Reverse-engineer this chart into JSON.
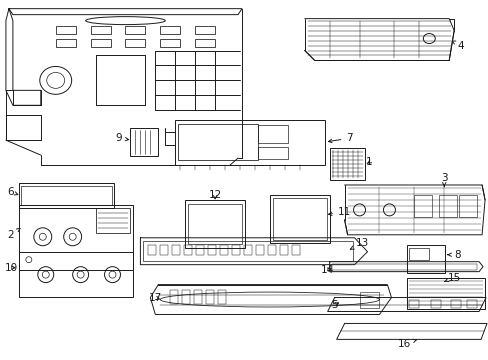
{
  "bg_color": "#ffffff",
  "line_color": "#1a1a1a",
  "fig_width": 4.89,
  "fig_height": 3.6,
  "dpi": 100,
  "label_fs": 7.5,
  "lw": 0.7
}
